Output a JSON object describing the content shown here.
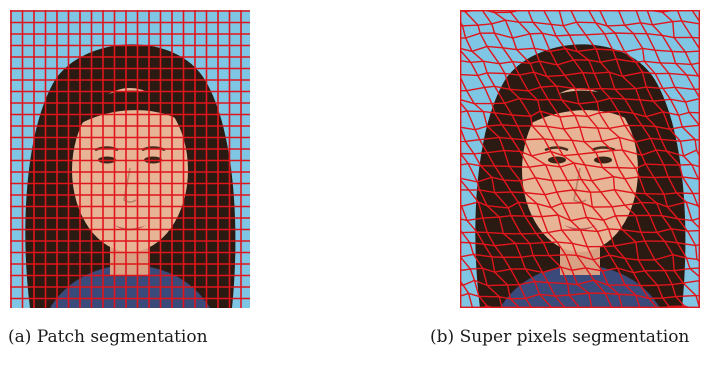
{
  "figure": {
    "panels": [
      {
        "id": "a",
        "caption_label": "(a)",
        "caption_text": "Patch segmentation",
        "segmentation": "regular-grid",
        "grid_color": "#e0151b"
      },
      {
        "id": "b",
        "caption_label": "(b)",
        "caption_text": "Super pixels segmentation",
        "segmentation": "superpixels",
        "grid_color": "#e0151b"
      }
    ],
    "colors": {
      "background_sky": "#7ec6e3",
      "hair": "#2a1a12",
      "skin": "#e8b496",
      "shirt": "#3a4a7a"
    }
  }
}
